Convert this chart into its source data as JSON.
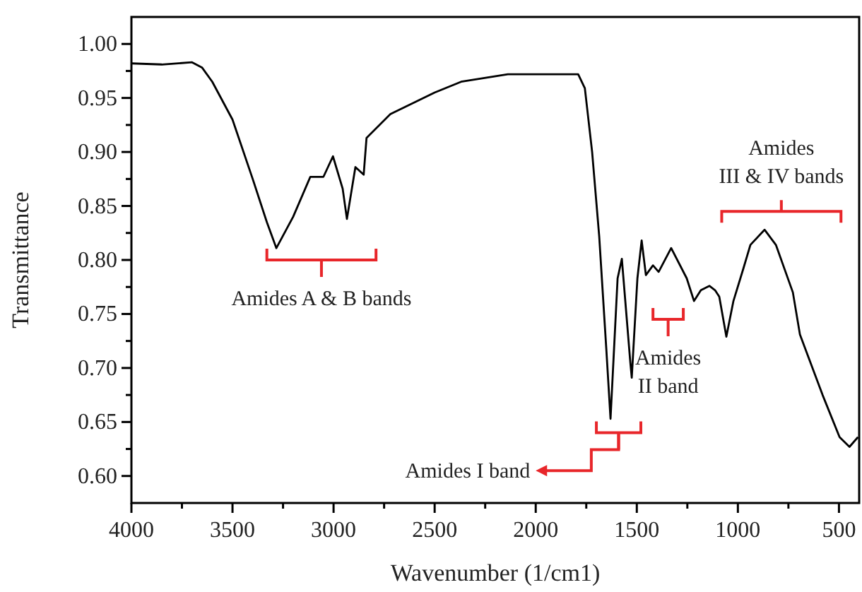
{
  "chart_data": {
    "type": "line",
    "xlabel": "Wavenumber (1/cm1)",
    "ylabel": "Transmittance",
    "xlim": [
      4000,
      400
    ],
    "ylim": [
      0.575,
      1.025
    ],
    "xticks": [
      4000,
      {
        "value": 3750,
        "label": null
      },
      3500,
      {
        "value": 3250,
        "label": null
      },
      3000,
      {
        "value": 2750,
        "label": null
      },
      2500,
      {
        "value": 2250,
        "label": null
      },
      2000,
      {
        "value": 1750,
        "label": null
      },
      1500,
      {
        "value": 1250,
        "label": null
      },
      1000,
      {
        "value": 750,
        "label": null
      },
      500
    ],
    "yticks": [
      {
        "value": 0.6,
        "label": "0.60"
      },
      {
        "value": 0.625,
        "label": null
      },
      {
        "value": 0.65,
        "label": "0.65"
      },
      {
        "value": 0.675,
        "label": null
      },
      {
        "value": 0.7,
        "label": "0.70"
      },
      {
        "value": 0.725,
        "label": null
      },
      {
        "value": 0.75,
        "label": "0.75"
      },
      {
        "value": 0.775,
        "label": null
      },
      {
        "value": 0.8,
        "label": "0.80"
      },
      {
        "value": 0.825,
        "label": null
      },
      {
        "value": 0.85,
        "label": "0.85"
      },
      {
        "value": 0.875,
        "label": null
      },
      {
        "value": 0.9,
        "label": "0.90"
      },
      {
        "value": 0.925,
        "label": null
      },
      {
        "value": 0.95,
        "label": "0.95"
      },
      {
        "value": 0.975,
        "label": null
      },
      {
        "value": 1,
        "label": "1.00"
      }
    ],
    "grid": false,
    "marker": "none",
    "line_style": "solid",
    "series": [
      {
        "color": "#000000",
        "x": [
          4000,
          3850,
          3700,
          3650,
          3600,
          3500,
          3400,
          3330,
          3283,
          3200,
          3115,
          3050,
          3003,
          2955,
          2934,
          2892,
          2851,
          2837,
          2719,
          2500,
          2369,
          2138,
          1790,
          1757,
          1721,
          1686,
          1651,
          1630,
          1595,
          1574,
          1532,
          1525,
          1497,
          1476,
          1455,
          1420,
          1392,
          1330,
          1253,
          1217,
          1183,
          1141,
          1113,
          1092,
          1057,
          1022,
          973,
          938,
          868,
          812,
          728,
          693,
          581,
          497,
          448,
          406
        ],
        "values": [
          0.982,
          0.981,
          0.983,
          0.978,
          0.965,
          0.93,
          0.875,
          0.835,
          0.811,
          0.84,
          0.877,
          0.877,
          0.896,
          0.866,
          0.838,
          0.886,
          0.879,
          0.913,
          0.935,
          0.955,
          0.965,
          0.972,
          0.972,
          0.959,
          0.9,
          0.822,
          0.718,
          0.653,
          0.783,
          0.801,
          0.705,
          0.691,
          0.783,
          0.818,
          0.786,
          0.795,
          0.789,
          0.811,
          0.783,
          0.762,
          0.772,
          0.776,
          0.772,
          0.766,
          0.729,
          0.762,
          0.792,
          0.814,
          0.828,
          0.814,
          0.77,
          0.731,
          0.675,
          0.636,
          0.627,
          0.636
        ]
      }
    ],
    "annotations": [
      "Amides A & B bands",
      "Amides III & IV bands",
      "Amides II band",
      "Amides I band"
    ]
  }
}
